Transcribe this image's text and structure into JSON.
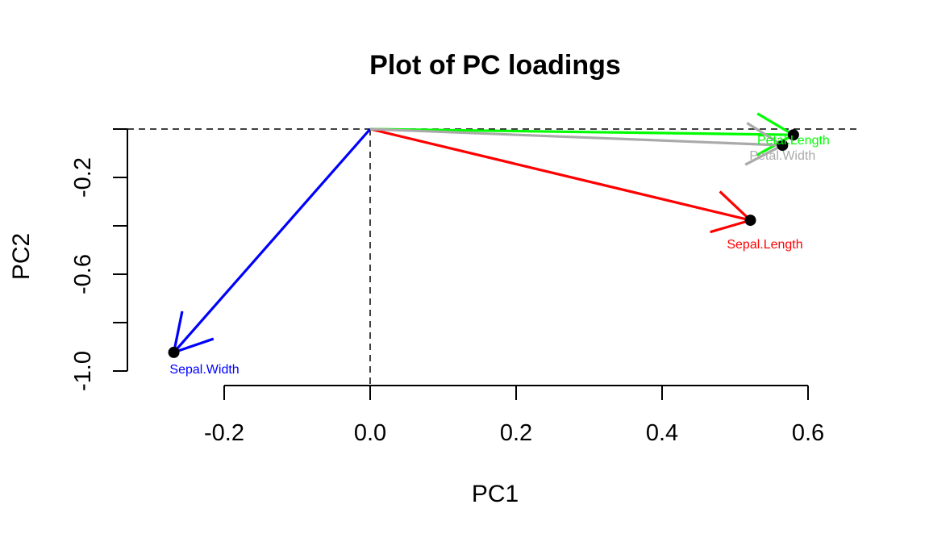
{
  "chart_data": {
    "type": "scatter",
    "title": "Plot of PC loadings",
    "xlabel": "PC1",
    "ylabel": "PC2",
    "xlim": [
      -0.3,
      0.7
    ],
    "ylim": [
      -1.0,
      0.0
    ],
    "x_ticks": [
      -0.2,
      0.0,
      0.2,
      0.4,
      0.6
    ],
    "x_tick_labels": [
      "-0.2",
      "0.0",
      "0.2",
      "0.4",
      "0.6"
    ],
    "y_ticks": [
      -1.0,
      -0.6,
      -0.2
    ],
    "y_tick_labels": [
      "-1.0",
      "-0.6",
      "-0.2"
    ],
    "reference_lines": [
      {
        "orientation": "horizontal",
        "value": 0.0,
        "style": "dashed"
      },
      {
        "orientation": "vertical",
        "value": 0.0,
        "style": "dashed"
      }
    ],
    "grid": false,
    "points": [
      {
        "label": "Sepal.Length",
        "x": 0.521,
        "y": -0.377,
        "color": "#ff0000"
      },
      {
        "label": "Sepal.Width",
        "x": -0.269,
        "y": -0.923,
        "color": "#0000ff"
      },
      {
        "label": "Petal.Length",
        "x": 0.58,
        "y": -0.024,
        "color": "#00ff00"
      },
      {
        "label": "Petal.Width",
        "x": 0.565,
        "y": -0.067,
        "color": "#aaaaaa"
      }
    ],
    "arrows_from_origin": true
  }
}
